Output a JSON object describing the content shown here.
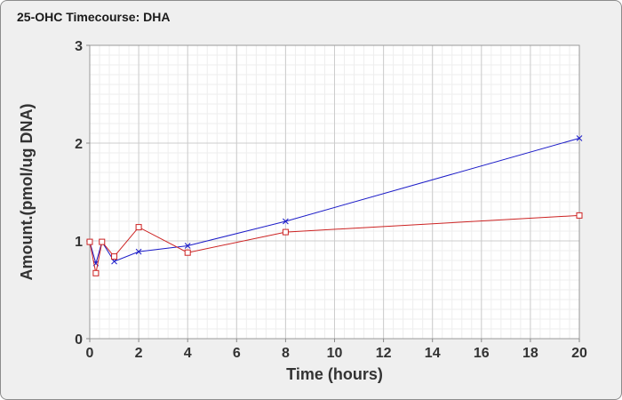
{
  "chart_data": {
    "type": "line",
    "title": "25-OHC Timecourse: DHA",
    "xlabel": "Time (hours)",
    "ylabel": "Amount.(pmol/ug DNA)",
    "xlim": [
      0,
      20
    ],
    "ylim": [
      0,
      3
    ],
    "x_ticks": [
      0,
      2,
      4,
      6,
      8,
      10,
      12,
      14,
      16,
      18,
      20
    ],
    "y_ticks": [
      0,
      1,
      2,
      3
    ],
    "grid": true,
    "legend": "none",
    "series": [
      {
        "color": "#1c1cc8",
        "marker": "x",
        "x": [
          0,
          0.25,
          0.5,
          1,
          2,
          4,
          8,
          20
        ],
        "y": [
          0.99,
          0.77,
          0.99,
          0.79,
          0.89,
          0.95,
          1.2,
          2.05
        ]
      },
      {
        "color": "#cc2222",
        "marker": "square",
        "x": [
          0,
          0.25,
          0.5,
          1,
          2,
          4,
          8,
          20
        ],
        "y": [
          0.99,
          0.67,
          0.99,
          0.84,
          1.14,
          0.88,
          1.09,
          1.26
        ]
      }
    ]
  }
}
